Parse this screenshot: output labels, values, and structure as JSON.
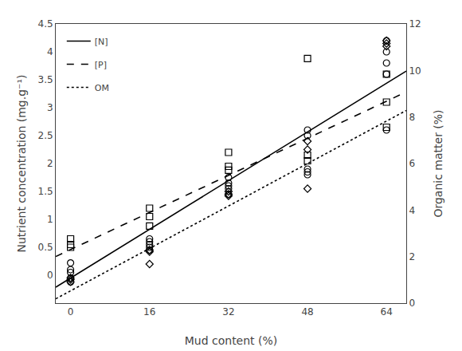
{
  "chart_data": {
    "type": "scatter",
    "xlabel": "Mud content (%)",
    "ylabel": "Nutrient concentration (mg.g⁻¹)",
    "y2label": "Organic matter (%)",
    "xlim": [
      -3,
      68
    ],
    "xticks": [
      0,
      16,
      32,
      48,
      64
    ],
    "ylim": [
      -0.5,
      4.5
    ],
    "yticks": [
      0.0,
      0.5,
      1.0,
      1.5,
      2.0,
      2.5,
      3.0,
      3.5,
      4.0,
      4.5
    ],
    "y2lim": [
      0,
      12
    ],
    "y2ticks": [
      0,
      2,
      4,
      6,
      8,
      10,
      12
    ],
    "grid": false,
    "legend": "upper left",
    "series": [
      {
        "name": "[N]",
        "type": "line",
        "line_style": "solid",
        "color": "#000000",
        "x": [
          -3,
          68
        ],
        "values": [
          -0.2135,
          3.656
        ]
      },
      {
        "name": "[P]",
        "type": "line",
        "line_style": "dash",
        "color": "#000000",
        "x": [
          -3,
          68
        ],
        "values": [
          0.3355,
          3.282
        ]
      },
      {
        "name": "OM",
        "type": "line",
        "line_style": "dot",
        "color": "#000000",
        "x": [
          -3,
          68
        ],
        "values": [
          -0.4225,
          2.95
        ]
      },
      {
        "name": "[N]",
        "type": "scatter",
        "marker": "circle",
        "color": "#000000",
        "x": [
          0,
          0,
          0,
          0,
          0,
          16,
          16,
          16,
          16,
          16,
          32,
          32,
          32,
          32,
          32,
          48,
          48,
          48,
          48,
          48,
          64,
          64,
          64,
          64,
          64
        ],
        "values": [
          0.22,
          0.1,
          0.05,
          -0.05,
          -0.12,
          0.65,
          0.6,
          0.55,
          0.5,
          0.45,
          1.75,
          1.65,
          1.6,
          1.55,
          1.45,
          2.6,
          2.5,
          1.9,
          1.85,
          1.8,
          4.2,
          4.0,
          3.8,
          3.6,
          2.6
        ]
      },
      {
        "name": "[P]",
        "type": "scatter",
        "marker": "square",
        "color": "#000000",
        "x": [
          0,
          0,
          0,
          16,
          16,
          16,
          32,
          32,
          32,
          48,
          48,
          48,
          64,
          64,
          64
        ],
        "values": [
          0.65,
          0.55,
          0.5,
          1.2,
          1.05,
          0.88,
          2.2,
          1.95,
          1.88,
          3.88,
          2.15,
          2.05,
          3.1,
          2.65,
          3.6
        ]
      },
      {
        "name": "OM",
        "type": "scatter",
        "marker": "diamond",
        "color": "#000000",
        "x": [
          0,
          0,
          0,
          16,
          16,
          16,
          32,
          32,
          32,
          48,
          48,
          48,
          64,
          64,
          64
        ],
        "values": [
          -0.12,
          -0.08,
          -0.05,
          0.45,
          0.42,
          0.2,
          1.5,
          1.45,
          1.42,
          2.4,
          2.25,
          1.55,
          4.2,
          4.15,
          4.1
        ]
      }
    ]
  }
}
